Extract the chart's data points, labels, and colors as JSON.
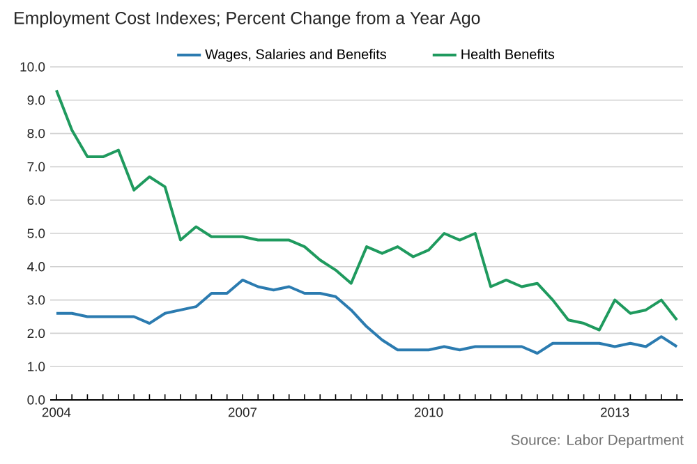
{
  "chart_data": {
    "type": "line",
    "title": "Employment Cost Indexes; Percent Change from a Year Ago",
    "x": [
      2004,
      2004.25,
      2004.5,
      2004.75,
      2005,
      2005.25,
      2005.5,
      2005.75,
      2006,
      2006.25,
      2006.5,
      2006.75,
      2007,
      2007.25,
      2007.5,
      2007.75,
      2008,
      2008.25,
      2008.5,
      2008.75,
      2009,
      2009.25,
      2009.5,
      2009.75,
      2010,
      2010.25,
      2010.5,
      2010.75,
      2011,
      2011.25,
      2011.5,
      2011.75,
      2012,
      2012.25,
      2012.5,
      2012.75,
      2013,
      2013.25,
      2013.5,
      2013.75,
      2014
    ],
    "series": [
      {
        "name": "Wages, Salaries and Benefits",
        "color": "#2b7bb0",
        "values": [
          2.6,
          2.6,
          2.5,
          2.5,
          2.5,
          2.5,
          2.3,
          2.6,
          2.7,
          2.8,
          3.2,
          3.2,
          3.6,
          3.4,
          3.3,
          3.4,
          3.2,
          3.2,
          3.1,
          2.7,
          2.2,
          1.8,
          1.5,
          1.5,
          1.5,
          1.6,
          1.5,
          1.6,
          1.6,
          1.6,
          1.6,
          1.4,
          1.7,
          1.7,
          1.7,
          1.7,
          1.6,
          1.7,
          1.6,
          1.9,
          1.6
        ]
      },
      {
        "name": "Health Benefits",
        "color": "#1f9a5e",
        "values": [
          9.3,
          8.1,
          7.3,
          7.3,
          7.5,
          6.3,
          6.7,
          6.4,
          4.8,
          5.2,
          4.9,
          4.9,
          4.9,
          4.8,
          4.8,
          4.8,
          4.6,
          4.2,
          3.9,
          3.5,
          4.6,
          4.4,
          4.6,
          4.3,
          4.5,
          5.0,
          4.8,
          5.0,
          3.4,
          3.6,
          3.4,
          3.5,
          3.0,
          2.4,
          2.3,
          2.1,
          3.0,
          2.6,
          2.7,
          3.0,
          2.4
        ]
      }
    ],
    "xlim": [
      2003.9,
      2014.1
    ],
    "xticks": [
      2004,
      {
        "value": 2004.25,
        "label": null
      },
      {
        "value": 2004.5,
        "label": null
      },
      {
        "value": 2004.75,
        "label": null
      },
      {
        "value": 2005,
        "label": null
      },
      {
        "value": 2005.25,
        "label": null
      },
      {
        "value": 2005.5,
        "label": null
      },
      {
        "value": 2005.75,
        "label": null
      },
      {
        "value": 2006,
        "label": null
      },
      {
        "value": 2006.25,
        "label": null
      },
      {
        "value": 2006.5,
        "label": null
      },
      {
        "value": 2006.75,
        "label": null
      },
      2007,
      {
        "value": 2007.25,
        "label": null
      },
      {
        "value": 2007.5,
        "label": null
      },
      {
        "value": 2007.75,
        "label": null
      },
      {
        "value": 2008,
        "label": null
      },
      {
        "value": 2008.25,
        "label": null
      },
      {
        "value": 2008.5,
        "label": null
      },
      {
        "value": 2008.75,
        "label": null
      },
      {
        "value": 2009,
        "label": null
      },
      {
        "value": 2009.25,
        "label": null
      },
      {
        "value": 2009.5,
        "label": null
      },
      {
        "value": 2009.75,
        "label": null
      },
      2010,
      {
        "value": 2010.25,
        "label": null
      },
      {
        "value": 2010.5,
        "label": null
      },
      {
        "value": 2010.75,
        "label": null
      },
      {
        "value": 2011,
        "label": null
      },
      {
        "value": 2011.25,
        "label": null
      },
      {
        "value": 2011.5,
        "label": null
      },
      {
        "value": 2011.75,
        "label": null
      },
      {
        "value": 2012,
        "label": null
      },
      {
        "value": 2012.25,
        "label": null
      },
      {
        "value": 2012.5,
        "label": null
      },
      {
        "value": 2012.75,
        "label": null
      },
      2013,
      {
        "value": 2013.25,
        "label": null
      },
      {
        "value": 2013.5,
        "label": null
      },
      {
        "value": 2013.75,
        "label": null
      },
      {
        "value": 2014,
        "label": null
      }
    ],
    "ylim": [
      0,
      10
    ],
    "yticks": [
      {
        "value": 0,
        "label": "0.0"
      },
      {
        "value": 1,
        "label": "1.0"
      },
      {
        "value": 2,
        "label": "2.0"
      },
      {
        "value": 3,
        "label": "3.0"
      },
      {
        "value": 4,
        "label": "4.0"
      },
      {
        "value": 5,
        "label": "5.0"
      },
      {
        "value": 6,
        "label": "6.0"
      },
      {
        "value": 7,
        "label": "7.0"
      },
      {
        "value": 8,
        "label": "8.0"
      },
      {
        "value": 9,
        "label": "9.0"
      },
      {
        "value": 10,
        "label": "10.0"
      }
    ],
    "grid": "y",
    "legend": "top",
    "marker": "none",
    "line_style": "solid",
    "annotations": [
      "Source: Labor Department"
    ]
  }
}
